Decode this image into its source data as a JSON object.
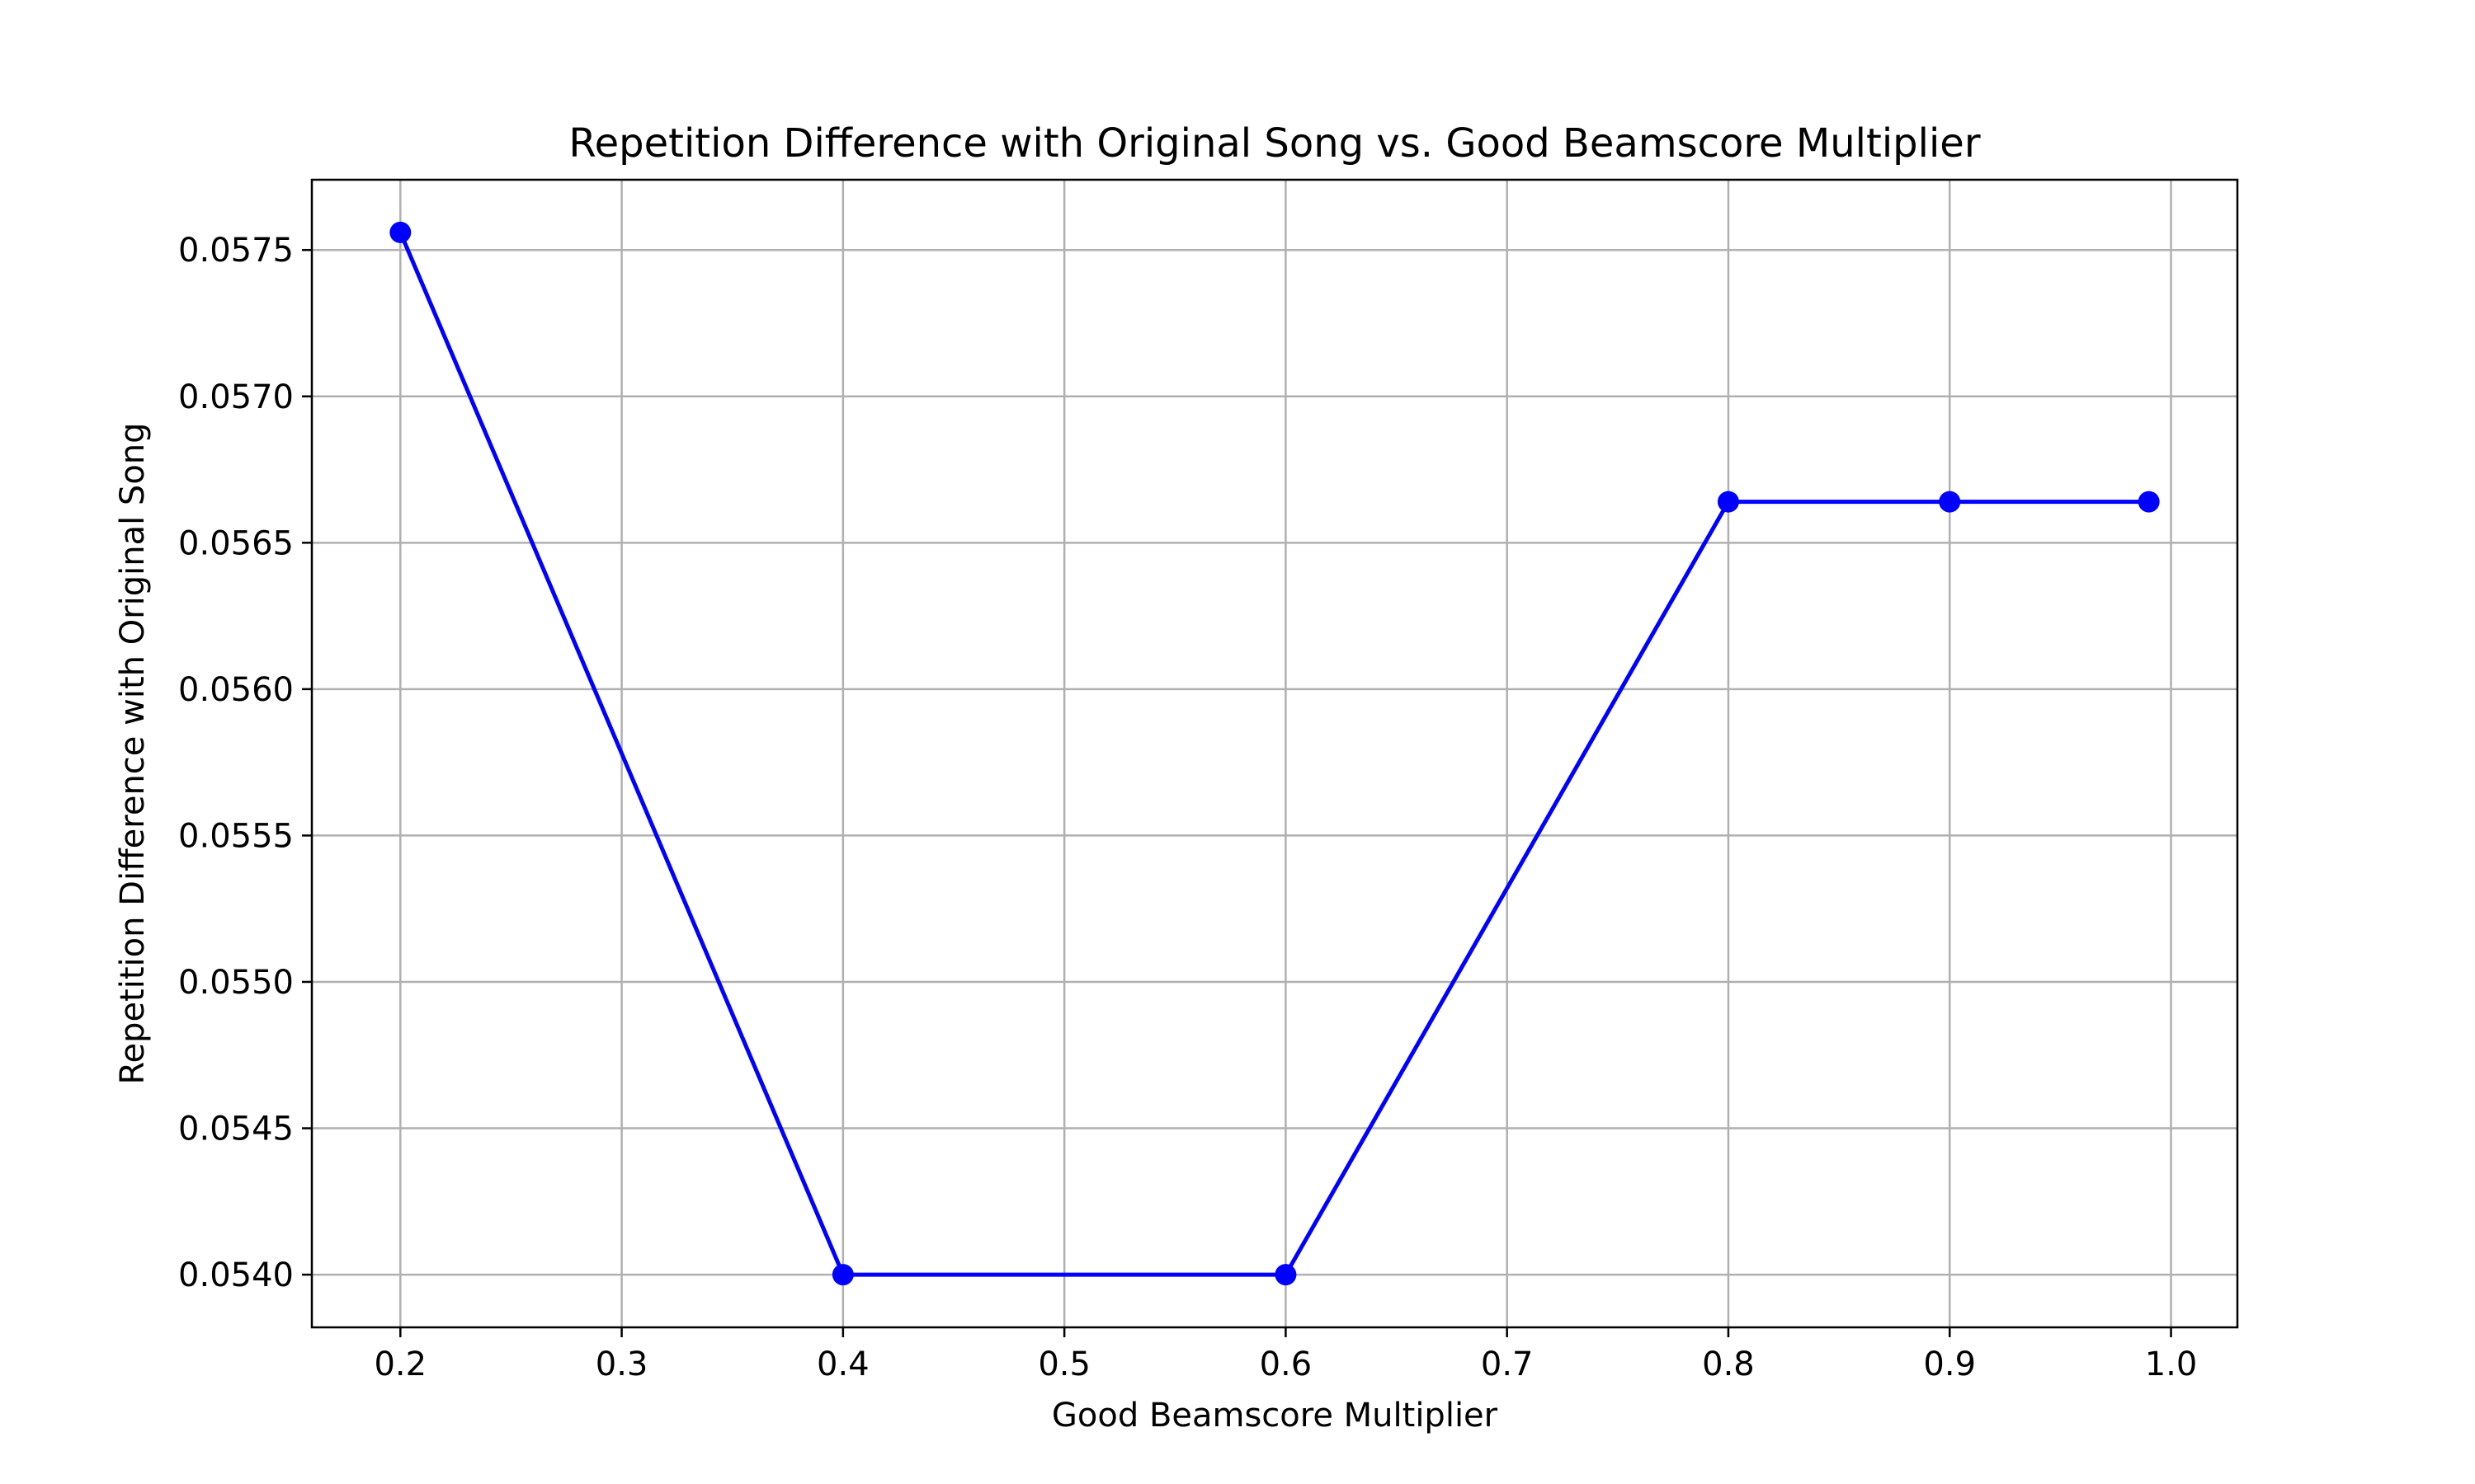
{
  "chart_data": {
    "type": "line",
    "title": "Repetition Difference with Original Song vs. Good Beamscore Multiplier",
    "xlabel": "Good Beamscore Multiplier",
    "ylabel": "Repetition Difference with Original Song",
    "xlim": [
      0.16,
      1.03
    ],
    "ylim": [
      0.05382,
      0.05774
    ],
    "xticks": [
      {
        "value": 0.2,
        "label": "0.2"
      },
      {
        "value": 0.3,
        "label": "0.3"
      },
      {
        "value": 0.4,
        "label": "0.4"
      },
      {
        "value": 0.5,
        "label": "0.5"
      },
      {
        "value": 0.6,
        "label": "0.6"
      },
      {
        "value": 0.7,
        "label": "0.7"
      },
      {
        "value": 0.8,
        "label": "0.8"
      },
      {
        "value": 0.9,
        "label": "0.9"
      },
      {
        "value": 1.0,
        "label": "1.0"
      }
    ],
    "yticks": [
      {
        "value": 0.054,
        "label": "0.0540"
      },
      {
        "value": 0.0545,
        "label": "0.0545"
      },
      {
        "value": 0.055,
        "label": "0.0550"
      },
      {
        "value": 0.0555,
        "label": "0.0555"
      },
      {
        "value": 0.056,
        "label": "0.0560"
      },
      {
        "value": 0.0565,
        "label": "0.0565"
      },
      {
        "value": 0.057,
        "label": "0.0570"
      },
      {
        "value": 0.0575,
        "label": "0.0575"
      }
    ],
    "grid": true,
    "series": [
      {
        "color": "#0000ff",
        "marker": "circle",
        "x": [
          0.2,
          0.4,
          0.6,
          0.8,
          0.9,
          0.99
        ],
        "y": [
          0.05756,
          0.054,
          0.054,
          0.05664,
          0.05664,
          0.05664
        ]
      }
    ]
  }
}
